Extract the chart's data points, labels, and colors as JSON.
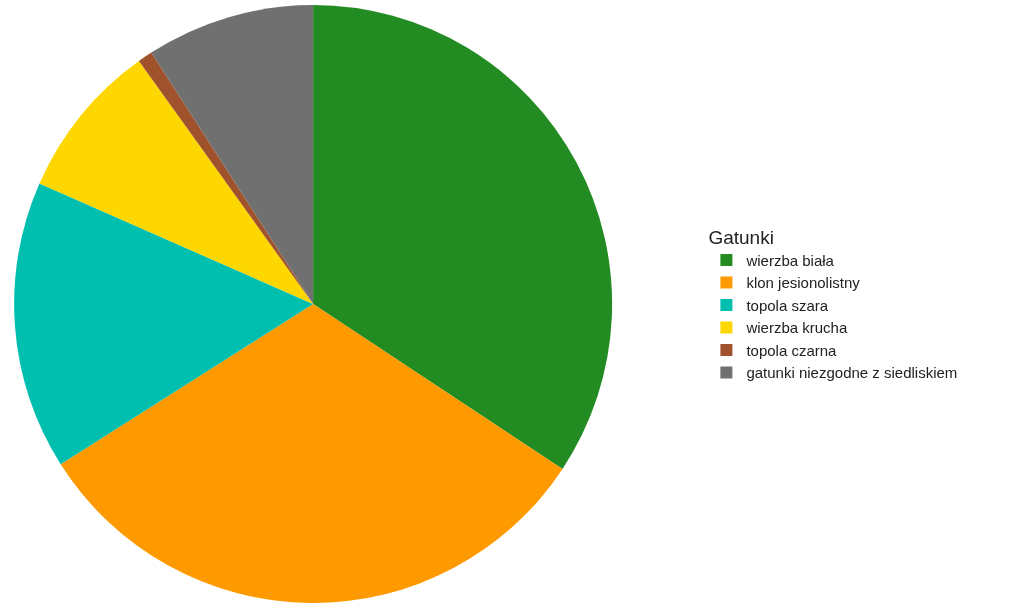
{
  "chart_data": {
    "type": "pie",
    "legend_title": "Gatunki",
    "legend": "right",
    "categories": [
      "wierzba biała",
      "klon jesionolistny",
      "topola szara",
      "wierzba krucha",
      "topola czarna",
      "gatunki niezgodne z siedliskiem"
    ],
    "values": [
      34.3,
      31.7,
      15.6,
      8.5,
      0.8,
      9.1
    ],
    "colors": [
      "#228b22",
      "#ff9900",
      "#00bfaf",
      "#ffd700",
      "#a0522d",
      "#707070"
    ]
  }
}
